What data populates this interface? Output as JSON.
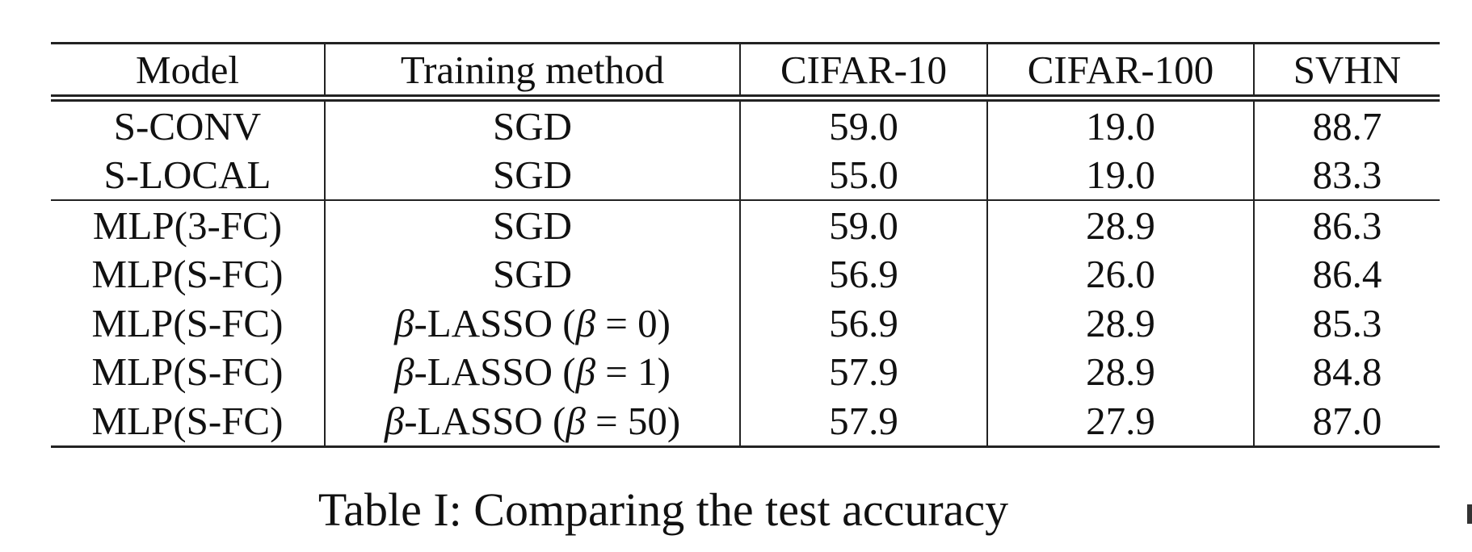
{
  "table": {
    "headers": [
      "Model",
      "Training method",
      "CIFAR-10",
      "CIFAR-100",
      "SVHN"
    ],
    "rows": [
      {
        "model": "S-CONV",
        "method": "SGD",
        "cifar10": "59.0",
        "cifar100": "19.0",
        "svhn": "88.7"
      },
      {
        "model": "S-LOCAL",
        "method": "SGD",
        "cifar10": "55.0",
        "cifar100": "19.0",
        "svhn": "83.3"
      },
      {
        "model": "MLP(3-FC)",
        "method": "SGD",
        "cifar10": "59.0",
        "cifar100": "28.9",
        "svhn": "86.3"
      },
      {
        "model": "MLP(S-FC)",
        "method": "SGD",
        "cifar10": "56.9",
        "cifar100": "26.0",
        "svhn": "86.4"
      },
      {
        "model": "MLP(S-FC)",
        "method_parts": {
          "beta": "β",
          "pre": "-LASSO (",
          "beta2": "β",
          "value": " = 0)"
        },
        "cifar10": "56.9",
        "cifar100": "28.9",
        "svhn": "85.3"
      },
      {
        "model": "MLP(S-FC)",
        "method_parts": {
          "beta": "β",
          "pre": "-LASSO (",
          "beta2": "β",
          "value": " = 1)"
        },
        "cifar10": "57.9",
        "cifar100": "28.9",
        "svhn": "84.8"
      },
      {
        "model": "MLP(S-FC)",
        "method_parts": {
          "beta": "β",
          "pre": "-LASSO (",
          "beta2": "β",
          "value": " = 50)"
        },
        "cifar10": "57.9",
        "cifar100": "27.9",
        "svhn": "87.0"
      }
    ]
  },
  "caption": "Table I: Comparing the test accuracy"
}
